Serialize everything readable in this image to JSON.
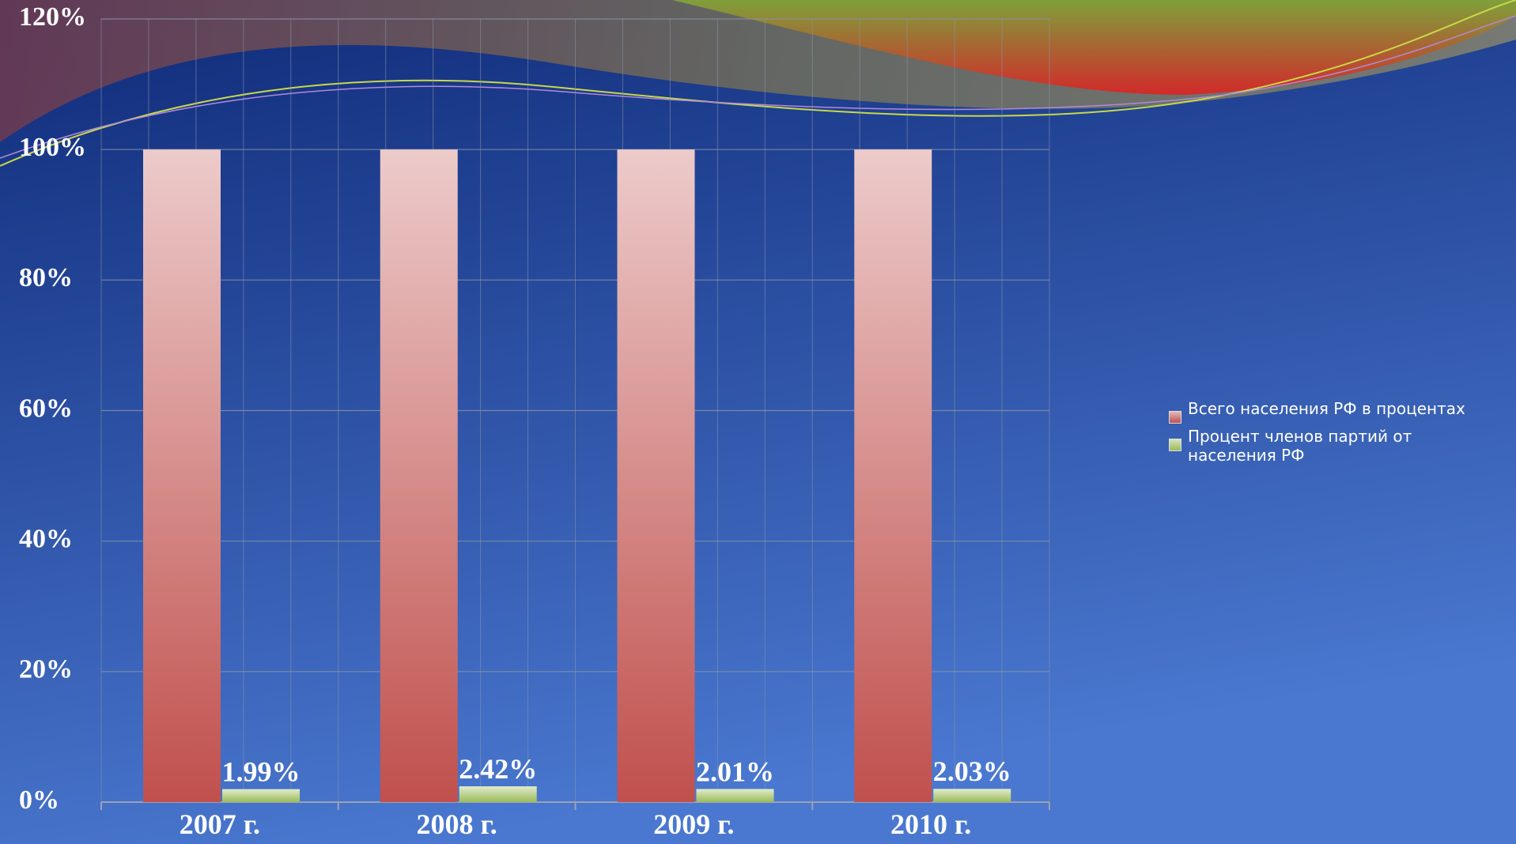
{
  "chart_data": {
    "type": "bar",
    "categories": [
      "2007 г.",
      "2008 г.",
      "2009 г.",
      "2010 г."
    ],
    "series": [
      {
        "name": "Всего населения РФ в процентах",
        "color": "#c0504d",
        "values": [
          100,
          100,
          100,
          100
        ]
      },
      {
        "name": "Процент членов партий от населения РФ",
        "color": "#9bbb59",
        "values": [
          1.99,
          2.42,
          2.01,
          2.03
        ],
        "value_labels": [
          "1.99%",
          "2.42%",
          "2.01%",
          "2.03%"
        ]
      }
    ],
    "ylim": [
      0,
      120
    ],
    "yticks": [
      {
        "value": 0,
        "label": "0%"
      },
      {
        "value": 20,
        "label": "20%"
      },
      {
        "value": 40,
        "label": "40%"
      },
      {
        "value": 60,
        "label": "60%"
      },
      {
        "value": 80,
        "label": "80%"
      },
      {
        "value": 100,
        "label": "100%"
      },
      {
        "value": 120,
        "label": "120%"
      }
    ],
    "grid": true,
    "legend": "right"
  }
}
